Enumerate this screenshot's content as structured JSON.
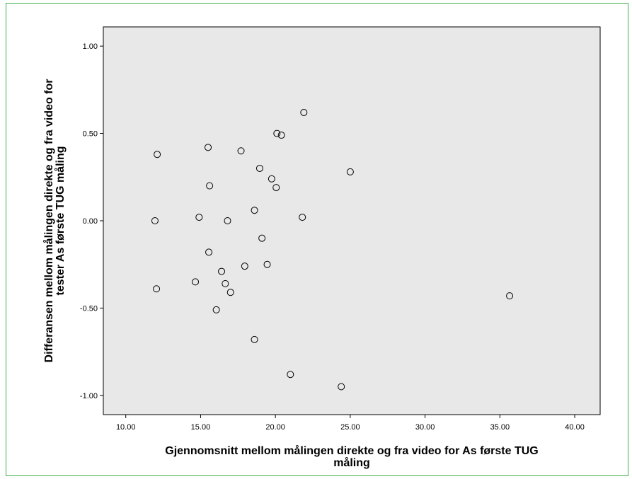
{
  "colors": {
    "plot_background": "#e8e8e8",
    "frame_border": "#3fae49",
    "marker": "#000000"
  },
  "chart_data": {
    "type": "scatter",
    "title": "",
    "xlabel_lines": [
      "Gjennomsnitt mellom målingen direkte og fra video for As første TUG",
      "måling"
    ],
    "ylabel_lines": [
      "Differansen mellom målingen direkte og fra video for",
      "tester As første TUG måling"
    ],
    "xlim": [
      8.5,
      41.7
    ],
    "ylim": [
      -1.11,
      1.11
    ],
    "x_ticks": [
      10,
      15,
      20,
      25,
      30,
      35,
      40
    ],
    "x_tick_labels": [
      "10.00",
      "15.00",
      "20.00",
      "25.00",
      "30.00",
      "35.00",
      "40.00"
    ],
    "y_ticks": [
      1,
      0.5,
      0,
      -0.5,
      -1
    ],
    "y_tick_labels": [
      "1.00",
      "0.50",
      "0.00",
      "-0.50",
      "-1.00"
    ],
    "grid": false,
    "legend": "none",
    "points": [
      {
        "x": 21.9,
        "y": 0.62
      },
      {
        "x": 20.1,
        "y": 0.5
      },
      {
        "x": 20.4,
        "y": 0.49
      },
      {
        "x": 15.5,
        "y": 0.42
      },
      {
        "x": 17.7,
        "y": 0.4
      },
      {
        "x": 12.1,
        "y": 0.38
      },
      {
        "x": 18.95,
        "y": 0.3
      },
      {
        "x": 25.0,
        "y": 0.28
      },
      {
        "x": 19.75,
        "y": 0.24
      },
      {
        "x": 15.6,
        "y": 0.2
      },
      {
        "x": 20.05,
        "y": 0.19
      },
      {
        "x": 18.6,
        "y": 0.06
      },
      {
        "x": 14.9,
        "y": 0.02
      },
      {
        "x": 21.8,
        "y": 0.02
      },
      {
        "x": 11.95,
        "y": 0.0
      },
      {
        "x": 16.8,
        "y": 0.0
      },
      {
        "x": 19.1,
        "y": -0.1
      },
      {
        "x": 15.55,
        "y": -0.18
      },
      {
        "x": 19.45,
        "y": -0.25
      },
      {
        "x": 17.95,
        "y": -0.26
      },
      {
        "x": 16.4,
        "y": -0.29
      },
      {
        "x": 14.65,
        "y": -0.35
      },
      {
        "x": 16.65,
        "y": -0.36
      },
      {
        "x": 12.05,
        "y": -0.39
      },
      {
        "x": 17.0,
        "y": -0.41
      },
      {
        "x": 35.65,
        "y": -0.43
      },
      {
        "x": 16.05,
        "y": -0.51
      },
      {
        "x": 18.6,
        "y": -0.68
      },
      {
        "x": 21.0,
        "y": -0.88
      },
      {
        "x": 24.4,
        "y": -0.95
      }
    ]
  }
}
